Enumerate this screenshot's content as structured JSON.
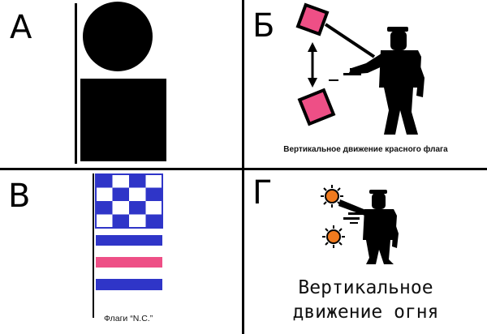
{
  "panels": {
    "a": {
      "letter": "А"
    },
    "b": {
      "letter": "Б",
      "caption": "Вертикальное движение красного флага"
    },
    "v": {
      "letter": "В",
      "caption": "Флаги “N.C.”"
    },
    "g": {
      "letter": "Г",
      "caption_line1": "Вертикальное",
      "caption_line2": "движение огня"
    }
  },
  "colors": {
    "flag_pink": "#ee4f86",
    "flag_blue": "#2f35c8",
    "lamp_orange": "#f07a1e",
    "silhouette": "#000000"
  }
}
